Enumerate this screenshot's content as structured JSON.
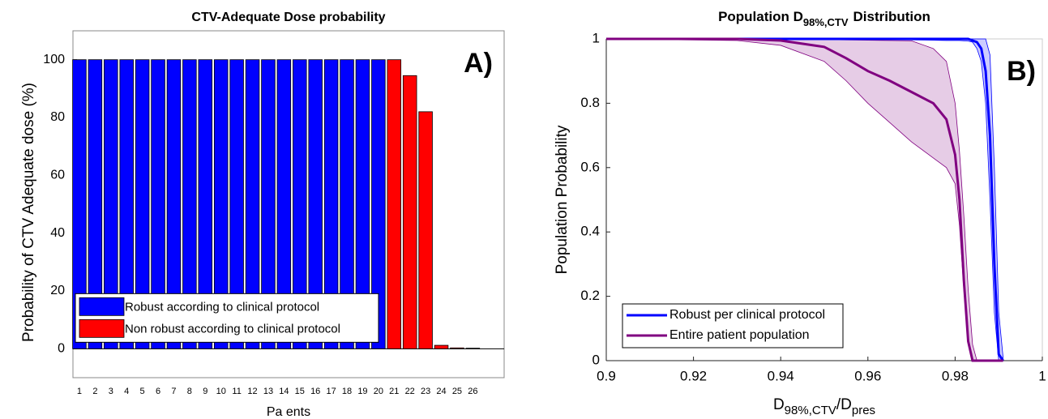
{
  "chart_data": [
    {
      "type": "bar",
      "title": "CTV-Adequate Dose probability",
      "categories": [
        "1",
        "2",
        "3",
        "4",
        "5",
        "6",
        "7",
        "8",
        "9",
        "10",
        "11",
        "12",
        "13",
        "14",
        "15",
        "16",
        "17",
        "18",
        "19",
        "20",
        "21",
        "22",
        "23",
        "24",
        "25",
        "26"
      ],
      "series": [
        {
          "name": "Robust according to clinical protocol",
          "color": "#0000ff",
          "values": [
            100,
            100,
            100,
            100,
            100,
            100,
            100,
            100,
            100,
            100,
            100,
            100,
            100,
            100,
            100,
            100,
            100,
            100,
            100,
            100,
            null,
            null,
            null,
            null,
            null,
            null
          ]
        },
        {
          "name": "Non robust according to clinical protocol",
          "color": "#ff0000",
          "values": [
            null,
            null,
            null,
            null,
            null,
            null,
            null,
            null,
            null,
            null,
            null,
            null,
            null,
            null,
            null,
            null,
            null,
            null,
            null,
            null,
            100,
            94.5,
            82,
            1.2,
            0.3,
            0.2
          ]
        }
      ],
      "ylim": [
        -10,
        110
      ],
      "yticks": [
        0,
        20,
        40,
        60,
        80,
        100
      ],
      "xlabel": "Pa ents",
      "ylabel": "Probability of CTV Adequate dose (%)",
      "annotation": "A)",
      "legend": "lower left"
    },
    {
      "type": "line",
      "title_main": "Population D",
      "title_sub": "98%,CTV",
      "title_end": "Distribution",
      "x": [
        0.9,
        0.93,
        0.94,
        0.95,
        0.955,
        0.96,
        0.965,
        0.97,
        0.975,
        0.978,
        0.98,
        0.981,
        0.982,
        0.983,
        0.984,
        0.985,
        0.986,
        0.987,
        0.988,
        0.989,
        0.99,
        0.991
      ],
      "series": [
        {
          "name": "Robust per clinical protocol",
          "color": "#0000ff",
          "values": [
            1,
            1,
            1,
            1,
            1,
            1,
            1,
            1,
            1,
            1,
            1,
            1,
            1,
            1,
            0.995,
            0.99,
            0.97,
            0.9,
            0.7,
            0.3,
            0.02,
            0
          ],
          "lower": [
            1,
            1,
            0.999,
            0.998,
            0.998,
            0.998,
            0.997,
            0.997,
            0.996,
            0.995,
            0.995,
            0.995,
            0.994,
            0.993,
            0.99,
            0.97,
            0.93,
            0.8,
            0.5,
            0.15,
            0,
            0
          ],
          "upper": [
            1,
            1,
            1,
            1,
            1,
            1,
            1,
            1,
            1,
            1,
            1,
            1,
            1,
            1,
            1,
            1,
            1,
            1,
            0.95,
            0.6,
            0.15,
            0.01
          ]
        },
        {
          "name": "Entire patient population",
          "color": "#800080",
          "values": [
            1,
            1,
            0.995,
            0.975,
            0.94,
            0.9,
            0.87,
            0.835,
            0.8,
            0.75,
            0.64,
            0.5,
            0.25,
            0.06,
            0,
            0,
            0,
            0,
            0,
            0,
            0,
            0
          ],
          "lower": [
            1,
            0.995,
            0.98,
            0.93,
            0.87,
            0.8,
            0.74,
            0.68,
            0.63,
            0.6,
            0.55,
            0.42,
            0.22,
            0.05,
            0,
            0,
            0,
            0,
            0,
            0,
            0,
            0
          ],
          "upper": [
            1,
            1,
            1,
            0.998,
            0.997,
            0.996,
            0.995,
            0.994,
            0.97,
            0.93,
            0.8,
            0.65,
            0.45,
            0.22,
            0.05,
            0,
            0,
            0,
            0,
            0,
            0,
            0
          ]
        }
      ],
      "xlim": [
        0.9,
        1
      ],
      "xticks": [
        0.9,
        0.92,
        0.94,
        0.96,
        0.98,
        1
      ],
      "ylim": [
        0,
        1
      ],
      "yticks": [
        0,
        0.2,
        0.4,
        0.6,
        0.8,
        1
      ],
      "xlabel_main": "D",
      "xlabel_sub": "98%,CTV",
      "xlabel_mid": "/D",
      "xlabel_sub2": "pres",
      "ylabel": "Population Probability",
      "annotation": "B)",
      "legend": "lower left"
    }
  ]
}
